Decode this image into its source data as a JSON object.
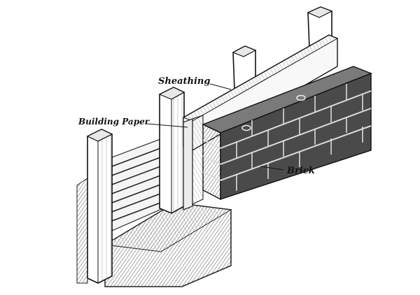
{
  "labels": {
    "sheathing": "Sheathing",
    "building_paper": "Building Paper",
    "brick": "Brick"
  },
  "colors": {
    "ink": "#1a1a1a",
    "background": "#ffffff",
    "brick_dark": "#3a3a3a",
    "brick_mid": "#6e6e6e",
    "wood_light": "#d8d8d8"
  }
}
